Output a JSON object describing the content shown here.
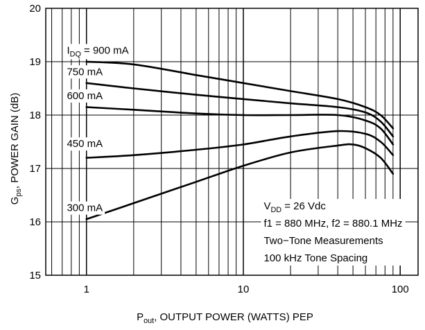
{
  "chart_data": {
    "type": "line",
    "x_scale": "log",
    "xlim": [
      0.55,
      130
    ],
    "ylim": [
      15,
      20
    ],
    "grid": true,
    "xlabel": {
      "main": "P",
      "sub": "out",
      "rest": ", OUTPUT POWER (WATTS) PEP"
    },
    "ylabel": {
      "main": "G",
      "sub": "ps",
      "rest": ",  POWER GAIN (dB)"
    },
    "x_ticks": [
      {
        "value": 1,
        "label": "1"
      },
      {
        "value": 10,
        "label": "10"
      },
      {
        "value": 100,
        "label": "100"
      }
    ],
    "y_ticks": [
      {
        "value": 15,
        "label": "15"
      },
      {
        "value": 16,
        "label": "16"
      },
      {
        "value": 17,
        "label": "17"
      },
      {
        "value": 18,
        "label": "18"
      },
      {
        "value": 19,
        "label": "19"
      },
      {
        "value": 20,
        "label": "20"
      }
    ],
    "series": [
      {
        "label": {
          "main": "I",
          "sub": "DQ",
          "rest": " = 900 mA"
        },
        "label_at": [
          0.75,
          19.15
        ],
        "x": [
          1,
          2,
          5,
          10,
          20,
          40,
          60,
          75,
          90
        ],
        "y": [
          19.0,
          18.95,
          18.75,
          18.6,
          18.45,
          18.3,
          18.15,
          18.0,
          17.75
        ]
      },
      {
        "label": {
          "main": "750 mA",
          "sub": "",
          "rest": ""
        },
        "label_at": [
          0.75,
          18.75
        ],
        "x": [
          1,
          2,
          5,
          10,
          20,
          40,
          60,
          75,
          90
        ],
        "y": [
          18.6,
          18.5,
          18.38,
          18.3,
          18.22,
          18.15,
          18.05,
          17.88,
          17.6
        ]
      },
      {
        "label": {
          "main": "600 mA",
          "sub": "",
          "rest": ""
        },
        "label_at": [
          0.75,
          18.3
        ],
        "x": [
          1,
          2,
          5,
          10,
          20,
          40,
          60,
          75,
          90
        ],
        "y": [
          18.15,
          18.1,
          18.03,
          18.0,
          18.0,
          18.0,
          17.9,
          17.75,
          17.45
        ]
      },
      {
        "label": {
          "main": "450 mA",
          "sub": "",
          "rest": ""
        },
        "label_at": [
          0.75,
          17.4
        ],
        "x": [
          1,
          2,
          5,
          10,
          20,
          40,
          60,
          75,
          90
        ],
        "y": [
          17.2,
          17.25,
          17.35,
          17.45,
          17.6,
          17.7,
          17.65,
          17.5,
          17.25
        ]
      },
      {
        "label": {
          "main": "300 mA",
          "sub": "",
          "rest": ""
        },
        "label_at": [
          0.75,
          16.2
        ],
        "x": [
          1,
          2,
          5,
          10,
          20,
          40,
          50,
          60,
          75,
          90
        ],
        "y": [
          16.05,
          16.35,
          16.75,
          17.05,
          17.3,
          17.43,
          17.45,
          17.38,
          17.2,
          16.9
        ]
      }
    ],
    "annotations": [
      {
        "main": "V",
        "sub": "DD",
        "rest": " = 26 Vdc"
      },
      {
        "main": "f1 = 880 MHz, f2 = 880.1 MHz",
        "sub": "",
        "rest": ""
      },
      {
        "main": "Two−Tone Measurements",
        "sub": "",
        "rest": ""
      },
      {
        "main": "100 kHz Tone Spacing",
        "sub": "",
        "rest": ""
      }
    ]
  }
}
